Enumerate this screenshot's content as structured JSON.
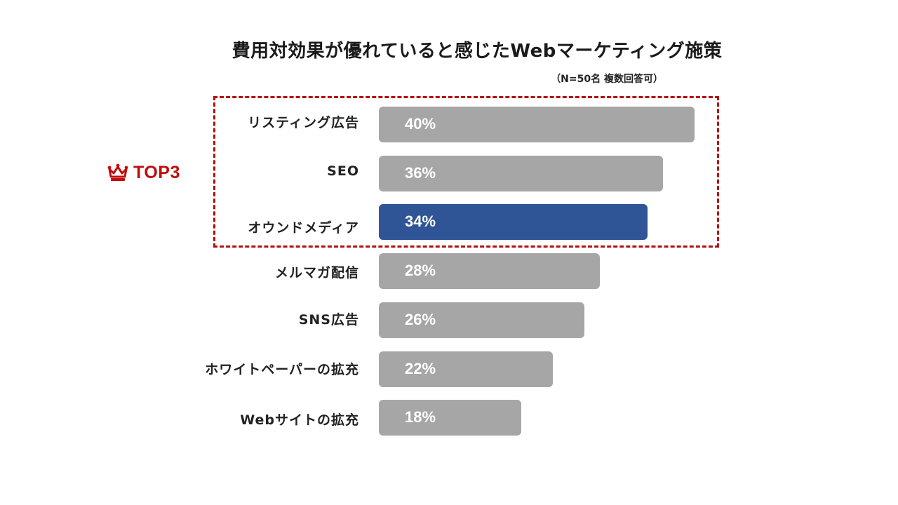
{
  "title": "費用対効果が優れていると感じたWebマーケティング施策",
  "note": "（N=50名 複数回答可）",
  "badge": {
    "label": "TOP3",
    "icon": "crown-icon",
    "color": "#c00d0d"
  },
  "colors": {
    "default_bar": "#a6a6a6",
    "highlight_bar": "#2f5597",
    "top_box": "#b50d0d"
  },
  "chart_data": {
    "type": "bar",
    "orientation": "horizontal",
    "categories": [
      "リスティング広告",
      "SEO",
      "オウンドメディア",
      "メルマガ配信",
      "SNS広告",
      "ホワイトペーパーの拡充",
      "Webサイトの拡充"
    ],
    "values": [
      40,
      36,
      34,
      28,
      26,
      22,
      18
    ],
    "value_labels": [
      "40%",
      "36%",
      "34%",
      "28%",
      "26%",
      "22%",
      "18%"
    ],
    "highlight_index": 2,
    "xlim": [
      0,
      40
    ],
    "grid": false
  }
}
